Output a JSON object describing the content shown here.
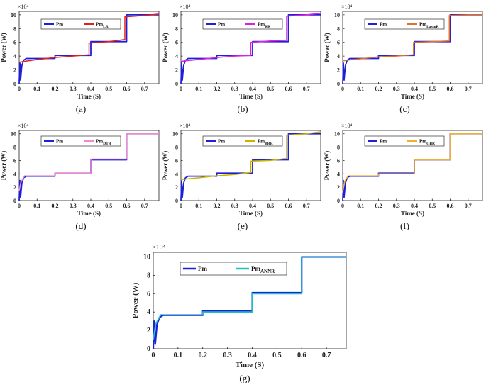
{
  "figure": {
    "reference": {
      "name": "Pm",
      "color": "#1f1fd8",
      "x": [
        0,
        0.004,
        0.008,
        0.015,
        0.025,
        0.04,
        0.2,
        0.2,
        0.4,
        0.4,
        0.6,
        0.6,
        0.78
      ],
      "y": [
        0,
        3.0,
        0.5,
        2.6,
        3.4,
        3.65,
        3.65,
        4.1,
        4.1,
        6.1,
        6.1,
        10.0,
        10.0
      ]
    }
  },
  "chart_data": [
    {
      "id": "a",
      "caption": "(a)",
      "type": "line",
      "xlabel": "Time (S)",
      "ylabel": "Power (W)",
      "y_exponent": "×10⁴",
      "xlim": [
        0,
        0.78
      ],
      "ylim": [
        0,
        10.5
      ],
      "xticks": [
        "0",
        "0.1",
        "0.2",
        "0.3",
        "0.4",
        "0.5",
        "0.6",
        "0.7"
      ],
      "yticks": [
        "0",
        "2",
        "4",
        "6",
        "8",
        "10"
      ],
      "legend": [
        {
          "label": "Pm",
          "sub": ""
        },
        {
          "label": "Pm",
          "sub": "LR"
        }
      ],
      "series_color": "#e02020",
      "series": [
        {
          "name": "Pm",
          "x": [
            0,
            0.004,
            0.008,
            0.015,
            0.025,
            0.04,
            0.2,
            0.2,
            0.4,
            0.4,
            0.6,
            0.6,
            0.78
          ],
          "y": [
            0,
            3.0,
            0.5,
            2.6,
            3.4,
            3.65,
            3.65,
            4.1,
            4.1,
            6.1,
            6.1,
            10.0,
            10.0
          ]
        },
        {
          "name": "Pm_LR",
          "x": [
            0,
            0.02,
            0.1,
            0.2,
            0.3,
            0.39,
            0.39,
            0.5,
            0.59,
            0.59,
            0.7,
            0.78
          ],
          "y": [
            3.1,
            3.2,
            3.5,
            3.8,
            4.0,
            4.2,
            5.9,
            6.1,
            6.4,
            9.7,
            9.9,
            10.1
          ]
        }
      ]
    },
    {
      "id": "b",
      "caption": "(b)",
      "type": "line",
      "xlabel": "Time (S)",
      "ylabel": "Power (W)",
      "y_exponent": "×10⁴",
      "xlim": [
        0,
        0.78
      ],
      "ylim": [
        0,
        10.5
      ],
      "xticks": [
        "0",
        "0.1",
        "0.2",
        "0.3",
        "0.4",
        "0.5",
        "0.6",
        "0.7"
      ],
      "yticks": [
        "0",
        "2",
        "4",
        "6",
        "8",
        "10"
      ],
      "legend": [
        {
          "label": "Pm",
          "sub": ""
        },
        {
          "label": "Pm",
          "sub": "RR"
        }
      ],
      "series_color": "#e020e0",
      "series": [
        {
          "name": "Pm",
          "x": [
            0,
            0.004,
            0.008,
            0.015,
            0.025,
            0.04,
            0.2,
            0.2,
            0.4,
            0.4,
            0.6,
            0.6,
            0.78
          ],
          "y": [
            0,
            3.0,
            0.5,
            2.6,
            3.4,
            3.65,
            3.65,
            4.1,
            4.1,
            6.1,
            6.1,
            10.0,
            10.0
          ]
        },
        {
          "name": "Pm_RR",
          "x": [
            0,
            0.02,
            0.1,
            0.2,
            0.3,
            0.39,
            0.39,
            0.5,
            0.59,
            0.59,
            0.7,
            0.78
          ],
          "y": [
            3.2,
            3.3,
            3.5,
            3.8,
            4.0,
            4.1,
            6.0,
            6.2,
            6.3,
            9.8,
            10.0,
            10.2
          ]
        }
      ]
    },
    {
      "id": "c",
      "caption": "(c)",
      "type": "line",
      "xlabel": "Time (S)",
      "ylabel": "Power (W)",
      "y_exponent": "×10⁴",
      "xlim": [
        0,
        0.78
      ],
      "ylim": [
        0,
        10.5
      ],
      "xticks": [
        "0",
        "0.1",
        "0.2",
        "0.3",
        "0.4",
        "0.5",
        "0.6",
        "0.7"
      ],
      "yticks": [
        "0",
        "2",
        "4",
        "6",
        "8",
        "10"
      ],
      "legend": [
        {
          "label": "Pm",
          "sub": ""
        },
        {
          "label": "Pm",
          "sub": "LassoR"
        }
      ],
      "series_color": "#e07030",
      "series": [
        {
          "name": "Pm",
          "x": [
            0,
            0.004,
            0.008,
            0.015,
            0.025,
            0.04,
            0.2,
            0.2,
            0.4,
            0.4,
            0.6,
            0.6,
            0.78
          ],
          "y": [
            0,
            3.0,
            0.5,
            2.6,
            3.4,
            3.65,
            3.65,
            4.1,
            4.1,
            6.1,
            6.1,
            10.0,
            10.0
          ]
        },
        {
          "name": "Pm_LassoR",
          "x": [
            0,
            0.02,
            0.1,
            0.2,
            0.3,
            0.395,
            0.395,
            0.5,
            0.595,
            0.595,
            0.7,
            0.78
          ],
          "y": [
            3.3,
            3.4,
            3.6,
            3.9,
            4.0,
            4.2,
            6.0,
            6.1,
            6.2,
            9.9,
            10.0,
            10.0
          ]
        }
      ]
    },
    {
      "id": "d",
      "caption": "(d)",
      "type": "line",
      "xlabel": "Time (S)",
      "ylabel": "Power (W)",
      "y_exponent": "×10⁴",
      "xlim": [
        0,
        0.78
      ],
      "ylim": [
        0,
        10.5
      ],
      "xticks": [
        "0",
        "0.1",
        "0.2",
        "0.3",
        "0.4",
        "0.5",
        "0.6",
        "0.7"
      ],
      "yticks": [
        "0",
        "2",
        "4",
        "6",
        "8",
        "10"
      ],
      "legend": [
        {
          "label": "Pm",
          "sub": ""
        },
        {
          "label": "Pm",
          "sub": "DTR"
        }
      ],
      "series_color": "#f08ad0",
      "series": [
        {
          "name": "Pm",
          "x": [
            0,
            0.004,
            0.008,
            0.015,
            0.025,
            0.04,
            0.2,
            0.2,
            0.4,
            0.4,
            0.6,
            0.6,
            0.78
          ],
          "y": [
            0,
            3.0,
            0.5,
            2.6,
            3.4,
            3.65,
            3.65,
            4.1,
            4.1,
            6.1,
            6.1,
            10.0,
            10.0
          ]
        },
        {
          "name": "Pm_DTR",
          "x": [
            0,
            0.01,
            0.03,
            0.2,
            0.2,
            0.4,
            0.4,
            0.6,
            0.6,
            0.78
          ],
          "y": [
            1.5,
            2.8,
            3.7,
            3.7,
            4.1,
            4.1,
            6.2,
            6.2,
            10.0,
            10.0
          ]
        }
      ]
    },
    {
      "id": "e",
      "caption": "(e)",
      "type": "line",
      "xlabel": "Time (S)",
      "ylabel": "Power (W)",
      "y_exponent": "×10⁴",
      "xlim": [
        0,
        0.78
      ],
      "ylim": [
        0,
        10.5
      ],
      "xticks": [
        "0",
        "0.1",
        "0.2",
        "0.3",
        "0.4",
        "0.5",
        "0.6",
        "0.7"
      ],
      "yticks": [
        "0",
        "2",
        "4",
        "6",
        "8",
        "10"
      ],
      "legend": [
        {
          "label": "Pm",
          "sub": ""
        },
        {
          "label": "Pm",
          "sub": "BRR"
        }
      ],
      "series_color": "#c8b400",
      "series": [
        {
          "name": "Pm",
          "x": [
            0,
            0.004,
            0.008,
            0.015,
            0.025,
            0.04,
            0.2,
            0.2,
            0.4,
            0.4,
            0.6,
            0.6,
            0.78
          ],
          "y": [
            0,
            3.0,
            0.5,
            2.6,
            3.4,
            3.65,
            3.65,
            4.1,
            4.1,
            6.1,
            6.1,
            10.0,
            10.0
          ]
        },
        {
          "name": "Pm_BRR",
          "x": [
            0,
            0.02,
            0.1,
            0.2,
            0.3,
            0.39,
            0.39,
            0.5,
            0.59,
            0.59,
            0.7,
            0.78
          ],
          "y": [
            3.1,
            3.2,
            3.4,
            3.7,
            3.9,
            4.2,
            5.9,
            6.0,
            6.3,
            9.8,
            10.0,
            10.3
          ]
        }
      ]
    },
    {
      "id": "f",
      "caption": "(f)",
      "type": "line",
      "xlabel": "Time (S)",
      "ylabel": "Power (W)",
      "y_exponent": "×10⁴",
      "xlim": [
        0,
        0.78
      ],
      "ylim": [
        0,
        10.5
      ],
      "xticks": [
        "0",
        "0.1",
        "0.2",
        "0.3",
        "0.4",
        "0.5",
        "0.6",
        "0.7"
      ],
      "yticks": [
        "0",
        "2",
        "4",
        "6",
        "8",
        "10"
      ],
      "legend": [
        {
          "label": "Pm",
          "sub": ""
        },
        {
          "label": "Pm",
          "sub": "GBR"
        }
      ],
      "series_color": "#f0b030",
      "series": [
        {
          "name": "Pm",
          "x": [
            0,
            0.004,
            0.008,
            0.015,
            0.025,
            0.04,
            0.2,
            0.2,
            0.4,
            0.4,
            0.6,
            0.6,
            0.78
          ],
          "y": [
            0,
            3.0,
            0.5,
            2.6,
            3.4,
            3.65,
            3.65,
            4.1,
            4.1,
            6.1,
            6.1,
            10.0,
            10.0
          ]
        },
        {
          "name": "Pm_GBR",
          "x": [
            0,
            0.01,
            0.03,
            0.2,
            0.2,
            0.4,
            0.4,
            0.6,
            0.6,
            0.78
          ],
          "y": [
            1.2,
            2.8,
            3.7,
            3.7,
            4.0,
            4.0,
            6.1,
            6.1,
            10.0,
            10.0
          ]
        }
      ]
    },
    {
      "id": "g",
      "caption": "(g)",
      "type": "line",
      "xlabel": "Time (S)",
      "ylabel": "Power (W)",
      "y_exponent": "×10⁴",
      "xlim": [
        0,
        0.78
      ],
      "ylim": [
        0,
        10.5
      ],
      "xticks": [
        "0",
        "0.1",
        "0.2",
        "0.3",
        "0.4",
        "0.5",
        "0.6",
        "0.7"
      ],
      "yticks": [
        "0",
        "2",
        "4",
        "6",
        "8",
        "10"
      ],
      "legend": [
        {
          "label": "Pm",
          "sub": ""
        },
        {
          "label": "Pm",
          "sub": "ANNR"
        }
      ],
      "series_color": "#20c0c8",
      "series": [
        {
          "name": "Pm",
          "x": [
            0,
            0.004,
            0.008,
            0.015,
            0.025,
            0.04,
            0.2,
            0.2,
            0.4,
            0.4,
            0.6,
            0.6,
            0.78
          ],
          "y": [
            0,
            3.0,
            0.5,
            2.6,
            3.4,
            3.65,
            3.65,
            4.1,
            4.1,
            6.1,
            6.1,
            10.0,
            10.0
          ]
        },
        {
          "name": "Pm_ANNR",
          "x": [
            0,
            0.01,
            0.03,
            0.2,
            0.2,
            0.4,
            0.4,
            0.6,
            0.6,
            0.78
          ],
          "y": [
            1.0,
            2.7,
            3.7,
            3.7,
            4.0,
            4.0,
            6.0,
            6.0,
            10.0,
            10.0
          ]
        }
      ]
    }
  ]
}
